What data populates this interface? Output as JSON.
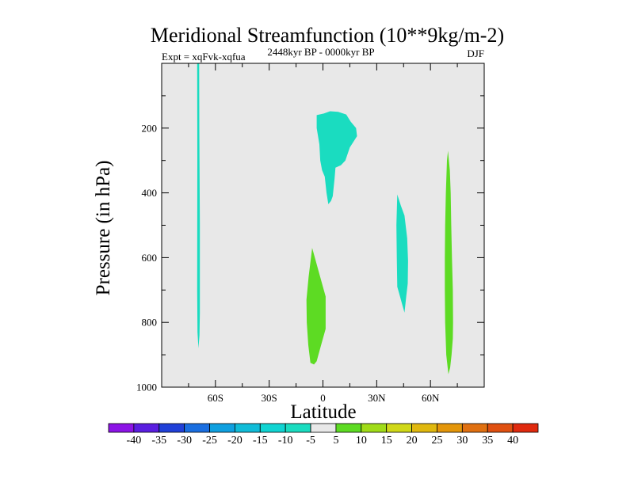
{
  "chart_data": {
    "type": "contour",
    "title": "Meridional Streamfunction (10**9kg/m-2)",
    "left_string": "Expt = xqFvk-xqfua",
    "center_string": "2448kyr BP - 0000kyr BP",
    "right_string": "DJF",
    "xlabel": "Latitude",
    "ylabel": "Pressure (in hPa)",
    "xlim": [
      -90,
      90
    ],
    "ylim": [
      1000,
      0
    ],
    "y_reversed": true,
    "x_ticks": [
      {
        "value": -60,
        "label": "60S"
      },
      {
        "value": -30,
        "label": "30S"
      },
      {
        "value": 0,
        "label": "0"
      },
      {
        "value": 30,
        "label": "30N"
      },
      {
        "value": 60,
        "label": "60N"
      }
    ],
    "y_ticks": [
      {
        "value": 200,
        "label": "200"
      },
      {
        "value": 400,
        "label": "400"
      },
      {
        "value": 600,
        "label": "600"
      },
      {
        "value": 800,
        "label": "800"
      },
      {
        "value": 1000,
        "label": "1000"
      }
    ],
    "background_color": "#e8e8e8",
    "regions": [
      {
        "name": "negative-cell-70S",
        "level": "-10 to -5",
        "color": "#1adcc0",
        "points": [
          [
            -70.2,
            0
          ],
          [
            -69.1,
            0
          ],
          [
            -69.0,
            200
          ],
          [
            -68.7,
            500
          ],
          [
            -68.7,
            770
          ],
          [
            -68.9,
            840
          ],
          [
            -69.5,
            880
          ],
          [
            -70.0,
            830
          ],
          [
            -70.2,
            700
          ],
          [
            -70.1,
            300
          ]
        ]
      },
      {
        "name": "negative-cell-upper-tropics",
        "level": "-10 to -5",
        "color": "#1adcc0",
        "points": [
          [
            -3.5,
            160
          ],
          [
            0.5,
            155
          ],
          [
            4,
            148
          ],
          [
            8.5,
            150
          ],
          [
            13,
            158
          ],
          [
            15.5,
            180
          ],
          [
            18.5,
            200
          ],
          [
            19,
            225
          ],
          [
            15,
            260
          ],
          [
            12.5,
            300
          ],
          [
            10,
            315
          ],
          [
            7,
            322
          ],
          [
            6.5,
            355
          ],
          [
            5.5,
            410
          ],
          [
            4.5,
            425
          ],
          [
            3.0,
            435
          ],
          [
            2.0,
            400
          ],
          [
            1.0,
            350
          ],
          [
            -0.5,
            330
          ],
          [
            -1.5,
            300
          ],
          [
            -2.0,
            250
          ],
          [
            -3.5,
            200
          ]
        ]
      },
      {
        "name": "negative-cell-45N",
        "level": "-10 to -5",
        "color": "#1adcc0",
        "points": [
          [
            41.5,
            405
          ],
          [
            43.5,
            440
          ],
          [
            45.5,
            470
          ],
          [
            47.0,
            540
          ],
          [
            47.5,
            610
          ],
          [
            47.3,
            680
          ],
          [
            46.5,
            720
          ],
          [
            45.5,
            770
          ],
          [
            44.0,
            740
          ],
          [
            42.5,
            710
          ],
          [
            41.5,
            690
          ],
          [
            41.2,
            600
          ],
          [
            41.0,
            500
          ]
        ]
      },
      {
        "name": "positive-cell-lower-tropics",
        "level": "5 to 10",
        "color": "#5ddb23",
        "points": [
          [
            -6.0,
            570
          ],
          [
            -4.5,
            600
          ],
          [
            -2.5,
            640
          ],
          [
            0.5,
            700
          ],
          [
            1.5,
            720
          ],
          [
            1.5,
            820
          ],
          [
            0.5,
            840
          ],
          [
            -1.0,
            870
          ],
          [
            -2.5,
            900
          ],
          [
            -3.5,
            920
          ],
          [
            -5.0,
            930
          ],
          [
            -7.0,
            925
          ],
          [
            -8.2,
            870
          ],
          [
            -9.0,
            800
          ],
          [
            -9.2,
            730
          ],
          [
            -8.0,
            660
          ]
        ]
      },
      {
        "name": "positive-cell-70N",
        "level": "5 to 10",
        "color": "#5ddb23",
        "points": [
          [
            69.8,
            270
          ],
          [
            70.8,
            330
          ],
          [
            71.3,
            400
          ],
          [
            71.6,
            500
          ],
          [
            72.0,
            600
          ],
          [
            72.5,
            700
          ],
          [
            72.6,
            800
          ],
          [
            72.5,
            850
          ],
          [
            71.8,
            900
          ],
          [
            71.0,
            940
          ],
          [
            70.0,
            960
          ],
          [
            68.8,
            900
          ],
          [
            68.2,
            800
          ],
          [
            68.0,
            700
          ],
          [
            68.0,
            600
          ],
          [
            68.2,
            500
          ],
          [
            68.6,
            400
          ],
          [
            69.2,
            300
          ]
        ]
      }
    ],
    "colorbar": {
      "labels": [
        "-40",
        "-35",
        "-30",
        "-25",
        "-20",
        "-15",
        "-10",
        "-5",
        "5",
        "10",
        "15",
        "20",
        "25",
        "30",
        "35",
        "40"
      ],
      "colors": [
        "#8c14e6",
        "#5a1ee0",
        "#2040d8",
        "#1a6ee0",
        "#0fa0e0",
        "#10bcd8",
        "#10d4d2",
        "#1adcc0",
        "#e8e8e8",
        "#5ddb23",
        "#a0dc18",
        "#d0d818",
        "#e0b80e",
        "#e4960a",
        "#e07010",
        "#e05010",
        "#e02a0e"
      ]
    }
  }
}
